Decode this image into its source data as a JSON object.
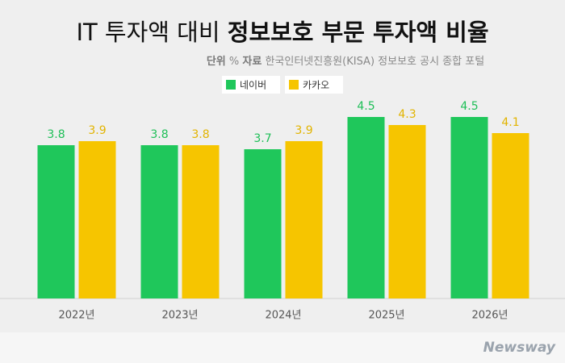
{
  "chart_data": {
    "type": "bar",
    "title": [
      "IT 투자액 대비",
      "정보보호 부문 투자액 비율"
    ],
    "unit_label": "단위",
    "unit": "%",
    "source_label": "자료",
    "source": "한국인터넷진흥원(KISA) 정보보호 공시 종합 포털",
    "categories": [
      "2022년",
      "2023년",
      "2024년",
      "2025년",
      "2026년"
    ],
    "series": [
      {
        "name": "네이버",
        "color": "#1fc75b",
        "label_color": "#1fbf58",
        "values": [
          3.8,
          3.8,
          3.7,
          4.5,
          4.5
        ]
      },
      {
        "name": "카카오",
        "color": "#f6c500",
        "label_color": "#e2b400",
        "values": [
          3.9,
          3.8,
          3.9,
          4.3,
          4.1
        ]
      }
    ],
    "ylim": [
      0,
      7.4
    ],
    "legend": "top",
    "watermark": "Newsway"
  }
}
